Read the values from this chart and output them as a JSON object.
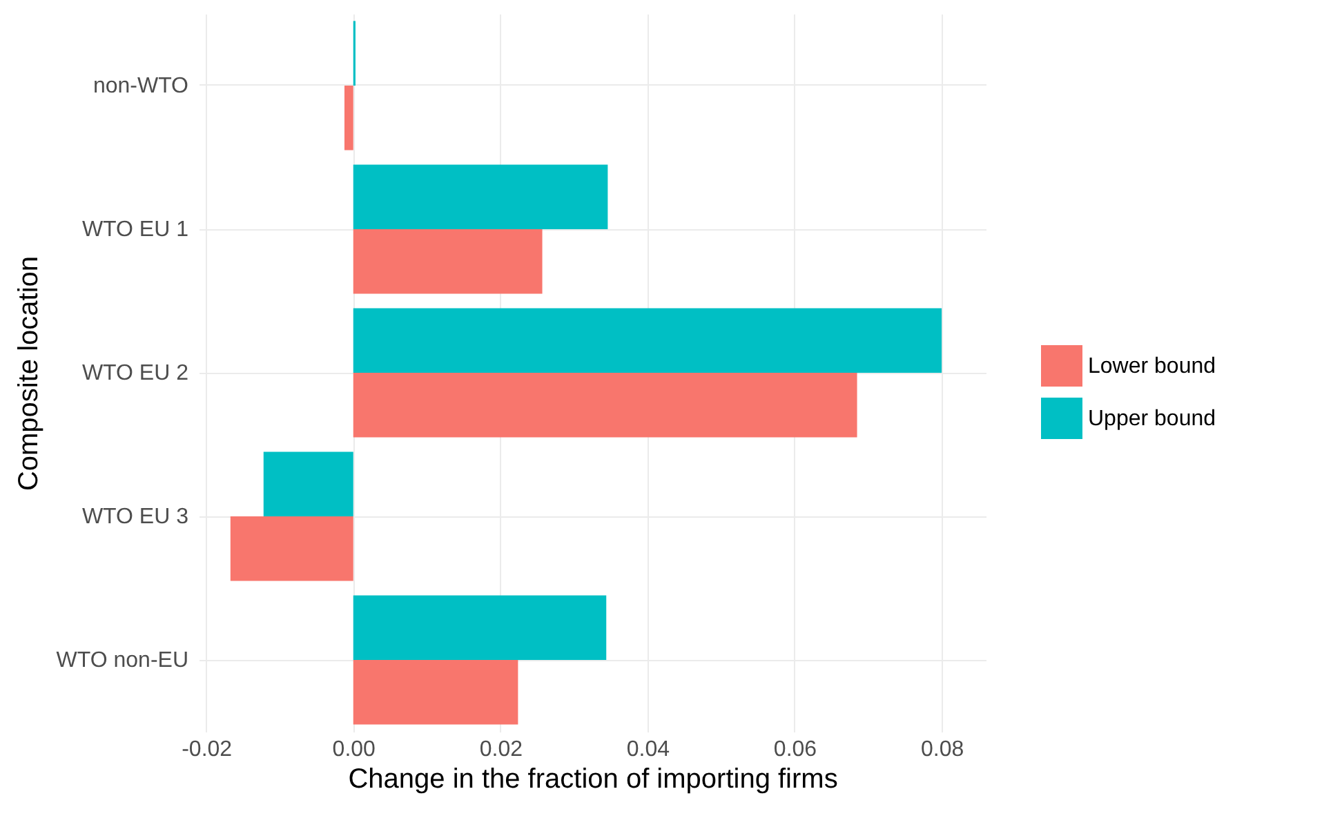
{
  "chart_data": {
    "type": "bar",
    "orientation": "horizontal",
    "xlabel": "Change in the fraction of importing firms",
    "ylabel": "Composite location",
    "legend": "right",
    "categories": [
      "non-WTO",
      "WTO EU 1",
      "WTO EU 2",
      "WTO EU 3",
      "WTO non-EU"
    ],
    "series": [
      {
        "name": "Lower bound",
        "color": "#f8766d",
        "values": [
          -0.0012,
          0.0257,
          0.0685,
          -0.0167,
          0.0224
        ]
      },
      {
        "name": "Upper bound",
        "color": "#00bfc4",
        "values": [
          0.0003,
          0.0346,
          0.08,
          -0.0122,
          0.0344
        ]
      }
    ],
    "xlim": [
      -0.021,
      0.086
    ],
    "xticks": [
      {
        "value": -0.02,
        "label": "-0.02"
      },
      {
        "value": 0,
        "label": "0.00"
      },
      {
        "value": 0.02,
        "label": "0.02"
      },
      {
        "value": 0.04,
        "label": "0.04"
      },
      {
        "value": 0.06,
        "label": "0.06"
      },
      {
        "value": 0.08,
        "label": "0.08"
      }
    ],
    "grid": true
  }
}
